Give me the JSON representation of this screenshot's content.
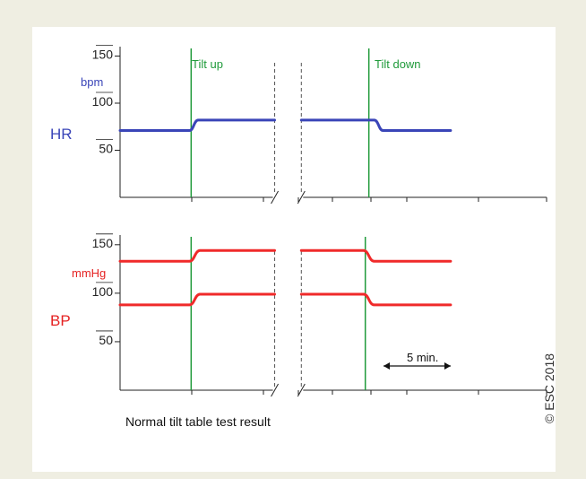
{
  "caption": "Normal tilt table test result",
  "copyright": "© ESC 2018",
  "scale_bar": {
    "label": "5 min."
  },
  "colors": {
    "hr_line": "#3a45b8",
    "bp_line": "#f02a2a",
    "event_line": "#1f9a3a",
    "hr_title": "#3a45b8",
    "bp_title": "#e52222",
    "background": "#efeee2"
  },
  "chart_data": [
    {
      "type": "line",
      "title": "HR",
      "unit": "bpm",
      "yticks": [
        "150",
        "100",
        "50"
      ],
      "ytick_values": [
        150,
        100,
        50
      ],
      "ylim": [
        0,
        160
      ],
      "events": [
        {
          "label": "Tilt up",
          "t": 4.0
        },
        {
          "label": "Tilt down",
          "t": 14.0
        }
      ],
      "axis_break": {
        "from": 8.7,
        "to": 10.2
      },
      "series": [
        {
          "segments": [
            [
              [
                0,
                71
              ],
              [
                3.9,
                71
              ],
              [
                4.4,
                82
              ],
              [
                8.7,
                82
              ]
            ],
            [
              [
                10.2,
                82
              ],
              [
                14.3,
                82
              ],
              [
                14.8,
                71
              ],
              [
                18.6,
                71
              ]
            ]
          ]
        }
      ],
      "xlim": [
        0,
        24
      ]
    },
    {
      "type": "line",
      "title": "BP",
      "unit": "mmHg",
      "yticks": [
        "150",
        "100",
        "50"
      ],
      "ytick_values": [
        150,
        100,
        50
      ],
      "ylim": [
        0,
        160
      ],
      "events": [
        {
          "label": "",
          "t": 4.0
        },
        {
          "label": "",
          "t": 13.8
        }
      ],
      "axis_break": {
        "from": 8.7,
        "to": 10.2
      },
      "series": [
        {
          "segments": [
            [
              [
                0,
                133
              ],
              [
                3.9,
                133
              ],
              [
                4.5,
                144
              ],
              [
                8.7,
                144
              ]
            ],
            [
              [
                10.2,
                144
              ],
              [
                13.7,
                144
              ],
              [
                14.3,
                133
              ],
              [
                18.6,
                133
              ]
            ]
          ]
        },
        {
          "segments": [
            [
              [
                0,
                88
              ],
              [
                3.9,
                88
              ],
              [
                4.5,
                99
              ],
              [
                8.7,
                99
              ]
            ],
            [
              [
                10.2,
                99
              ],
              [
                13.7,
                99
              ],
              [
                14.3,
                88
              ],
              [
                18.6,
                88
              ]
            ]
          ]
        }
      ],
      "xlim": [
        0,
        24
      ]
    }
  ]
}
